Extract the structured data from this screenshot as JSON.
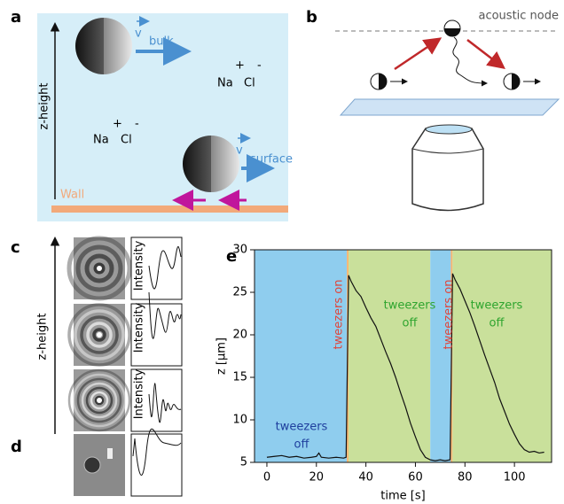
{
  "panels": {
    "a": {
      "letter": "a",
      "axis_label": "z-height",
      "wall": "Wall",
      "v": "v",
      "bulk": "bulk",
      "surface": "surface",
      "plus": "+",
      "minus": "-",
      "na": "Na",
      "cl": "Cl"
    },
    "b": {
      "letter": "b",
      "node": "acoustic node"
    },
    "c": {
      "letter": "c",
      "axis_label": "z-height",
      "intensity": "Intensity"
    },
    "d": {
      "letter": "d"
    },
    "e": {
      "letter": "e"
    }
  },
  "chart_data": {
    "type": "line",
    "xlabel": "time [s]",
    "ylabel": "z [μm]",
    "xlim": [
      -5,
      115
    ],
    "ylim": [
      5,
      30
    ],
    "xticks": [
      0,
      20,
      40,
      60,
      80,
      100
    ],
    "yticks": [
      5,
      10,
      15,
      20,
      25,
      30
    ],
    "spans": [
      {
        "start": -5,
        "end": 32.3,
        "color": "#8fcdee"
      },
      {
        "start": 32.3,
        "end": 33,
        "color": "#f6b46e"
      },
      {
        "start": 33,
        "end": 66,
        "color": "#c9e09b"
      },
      {
        "start": 66,
        "end": 74.3,
        "color": "#8fcdee"
      },
      {
        "start": 74.3,
        "end": 75,
        "color": "#f6b46e"
      },
      {
        "start": 75,
        "end": 115,
        "color": "#c9e09b"
      }
    ],
    "annotations": [
      {
        "lines": [
          "tweezers",
          "off"
        ],
        "color": "#1f3f9e"
      },
      {
        "lines": [
          "tweezers on"
        ],
        "color": "#e0463c"
      },
      {
        "lines": [
          "tweezers",
          "off"
        ],
        "color": "#2fa52f"
      },
      {
        "lines": [
          "tweezers on"
        ],
        "color": "#e0463c"
      },
      {
        "lines": [
          "tweezers",
          "off"
        ],
        "color": "#2fa52f"
      }
    ],
    "series": [
      {
        "color": "#111111",
        "x": [
          0,
          3,
          6,
          9,
          12,
          15,
          18,
          20,
          21,
          22,
          25,
          28,
          31,
          32,
          33,
          34,
          36,
          38,
          40,
          42,
          44,
          46,
          48,
          50,
          52,
          54,
          56,
          58,
          60,
          62,
          64,
          66,
          68,
          70,
          72,
          74,
          75,
          76,
          78,
          80,
          82,
          84,
          86,
          88,
          90,
          92,
          94,
          96,
          98,
          100,
          102,
          104,
          106,
          108,
          110,
          112
        ],
        "values": [
          5.6,
          5.7,
          5.8,
          5.6,
          5.7,
          5.5,
          5.6,
          5.7,
          6.1,
          5.6,
          5.5,
          5.6,
          5.5,
          5.6,
          27,
          26.3,
          25.2,
          24.5,
          23.2,
          22,
          21,
          19.5,
          18,
          16.6,
          15,
          13.2,
          11.5,
          9.6,
          8,
          6.5,
          5.6,
          5.3,
          5.2,
          5.3,
          5.2,
          5.3,
          27.2,
          26.5,
          25.4,
          24,
          22.6,
          21,
          19.3,
          17.6,
          16,
          14.4,
          12.5,
          11,
          9.5,
          8.3,
          7.2,
          6.5,
          6.2,
          6.3,
          6.1,
          6.2
        ]
      }
    ]
  }
}
